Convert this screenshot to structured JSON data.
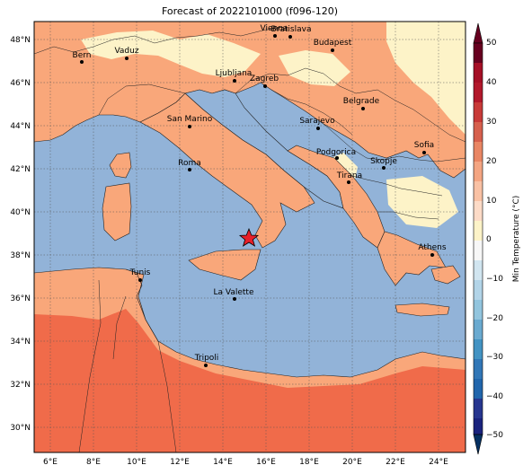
{
  "title": "Forecast of 2022101000 (f096-120)",
  "colorbar": {
    "label": "Min Temperature (°C)",
    "ticks": [
      "50",
      "40",
      "30",
      "20",
      "10",
      "0",
      "−10",
      "−20",
      "−30",
      "−40",
      "−50"
    ],
    "colors": [
      "#67001f",
      "#b2182b",
      "#d6604d",
      "#f4a582",
      "#fddbc7",
      "#f7f7f7",
      "#d1e5f0",
      "#92c5de",
      "#4393c3",
      "#2166ac",
      "#053061"
    ]
  },
  "legend_colors": {
    "sea": "#92b3d8",
    "land_warm": "#f9a77a",
    "land_mild": "#fdf3c8",
    "land_hot": "#f06b4a"
  },
  "axes": {
    "lat_ticks": [
      "48°N",
      "46°N",
      "44°N",
      "42°N",
      "40°N",
      "38°N",
      "36°N",
      "34°N",
      "32°N",
      "30°N"
    ],
    "lon_ticks": [
      "6°E",
      "8°E",
      "10°E",
      "12°E",
      "14°E",
      "16°E",
      "18°E",
      "20°E",
      "22°E",
      "24°E"
    ]
  },
  "cities": [
    {
      "name": "Bern"
    },
    {
      "name": "Vaduz"
    },
    {
      "name": "Vienna"
    },
    {
      "name": "Bratislava"
    },
    {
      "name": "Budapest"
    },
    {
      "name": "Ljubljana"
    },
    {
      "name": "Zagreb"
    },
    {
      "name": "Belgrade"
    },
    {
      "name": "San Marino"
    },
    {
      "name": "Sarajevo"
    },
    {
      "name": "Podgorica"
    },
    {
      "name": "Sofia"
    },
    {
      "name": "Skopje"
    },
    {
      "name": "Roma"
    },
    {
      "name": "Tirana"
    },
    {
      "name": "Athens"
    },
    {
      "name": "Tunis"
    },
    {
      "name": "La Valette"
    },
    {
      "name": "Tripoli"
    }
  ],
  "marker": {
    "type": "star",
    "color": "#e8202a"
  }
}
